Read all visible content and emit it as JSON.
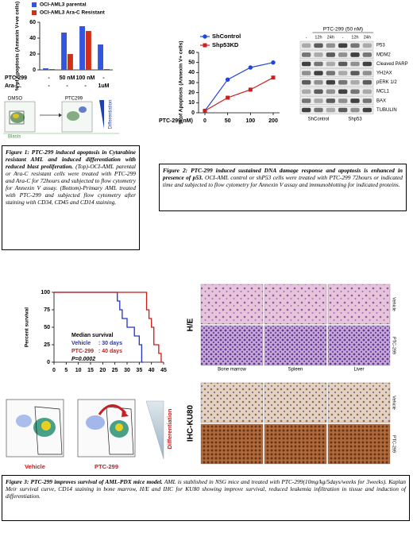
{
  "chart_data": [
    {
      "type": "bar",
      "ylabel": "% of Apoptosis (Annexin V+ve cells)",
      "series": [
        {
          "name": "OCI-AML3 parental",
          "color": "#3355e0",
          "values": [
            2,
            47,
            55,
            32
          ]
        },
        {
          "name": "OCI-AML3 Ara-C Resistant",
          "color": "#d03018",
          "values": [
            1,
            20,
            49,
            1
          ]
        }
      ],
      "treatments": [
        {
          "name": "PTC-299",
          "values": [
            "-",
            "50 nM",
            "100 nM",
            "-"
          ]
        },
        {
          "name": "Ara-C.",
          "values": [
            "-",
            "-",
            "-",
            "1uM"
          ]
        }
      ],
      "ylim": [
        0,
        60
      ],
      "yticks": [
        0,
        20,
        40,
        60
      ]
    },
    {
      "type": "line",
      "xlabel": "PTC-299(nM)",
      "ylabel": "% of Apoptosis (Annexin V+ cells)",
      "categories": [
        "0",
        "50",
        "100",
        "200"
      ],
      "series": [
        {
          "name": "ShControl",
          "color": "#2244dd",
          "marker": "circle",
          "values": [
            2,
            33,
            45,
            50
          ]
        },
        {
          "name": "Shp53KD",
          "color": "#cc2020",
          "marker": "square",
          "values": [
            2,
            15,
            23,
            35
          ]
        }
      ],
      "ylim": [
        0,
        60
      ],
      "yticks": [
        0,
        10,
        20,
        30,
        40,
        50,
        60
      ]
    },
    {
      "type": "step",
      "ylabel": "Percent survival",
      "series": [
        {
          "name": "Vehicle",
          "color": "#2233cc",
          "x": [
            0,
            26,
            27,
            28,
            30,
            33,
            35,
            36
          ],
          "values": [
            100,
            87.5,
            75,
            62.5,
            50,
            37.5,
            25,
            0
          ]
        },
        {
          "name": "PTC-299",
          "color": "#cc1a1a",
          "x": [
            0,
            38,
            39,
            40,
            41,
            43,
            44
          ],
          "values": [
            100,
            75,
            62.5,
            50,
            25,
            12.5,
            0
          ]
        }
      ],
      "annotations": [
        "Median survival",
        "Vehicle",
        ": 30 days",
        "PTC-299",
        ": 40 days",
        "P=0.0002"
      ],
      "xlim": [
        0,
        45
      ],
      "xticks": [
        0,
        5,
        10,
        15,
        20,
        25,
        30,
        35,
        40,
        45
      ],
      "ylim": [
        0,
        100
      ],
      "yticks": [
        0,
        25,
        50,
        75,
        100
      ]
    }
  ],
  "flow_top": {
    "labels": [
      "DMSO",
      "PTC299",
      "Blasts",
      "Differentiation"
    ]
  },
  "blot": {
    "header": "PTC-299 (50 nM)",
    "lanes": [
      "-",
      "12h",
      "24h",
      "-",
      "12h",
      "24h"
    ],
    "proteins": [
      "P53",
      "MDM2",
      "Cleaved PARP",
      "YH2AX",
      "pERK 1/2",
      "MCL1",
      "BAX",
      "TUBULIN"
    ],
    "groups": [
      "ShControl",
      "Shp53"
    ]
  },
  "flow_bottom": {
    "labels": [
      "Vehicle",
      "PTC-299"
    ],
    "arrow_label": "Differentiation"
  },
  "histology": {
    "stains": [
      "H/E",
      "IHC-KU80"
    ],
    "tissues": [
      "Bone marrow",
      "Spleen",
      "Liver"
    ],
    "conditions": [
      "Vehicle",
      "PTC-299"
    ]
  },
  "captions": [
    {
      "title": "Figure 1: PTC-299 induced apoptosis in Cytarabine resistant AML and induced differentiation with reduced blast proliferation.",
      "text": "(Top)-OCI-AML parental or Ara-C resistant cells were treated with PTC-299 and Ara-C for 72hours and subjected to flow cytometry for Annexin V assay. (Bottom)-Primary AML treated with PTC-299 and subjected flow cytometry after staining with CD34, CD45 and CD14 staining."
    },
    {
      "title": "Figure 2: PTC-299 induced sustained DNA damage response and apoptosis is enhanced in presence of p53.",
      "text": "OCI-AML control or shP53 cells were treated with PTC-299 72hours or indicated time and subjected to flow cytometry for Annexin V assay and immunoblotting for indicated proteins."
    },
    {
      "title": "Figure 3: PTC-299 improves survival of AML-PDX mice model.",
      "text": "AML is stablished in NSG mice and treated with PTC-299(10mg/kg/5days/weeks for 3weeks). Kaplan Meir survival curve, CD14 staining in bone marrow, H/E and IHC for KU80 showing improve survival, reduced leukemia infiltration in tissue and induction of differentiation."
    }
  ]
}
